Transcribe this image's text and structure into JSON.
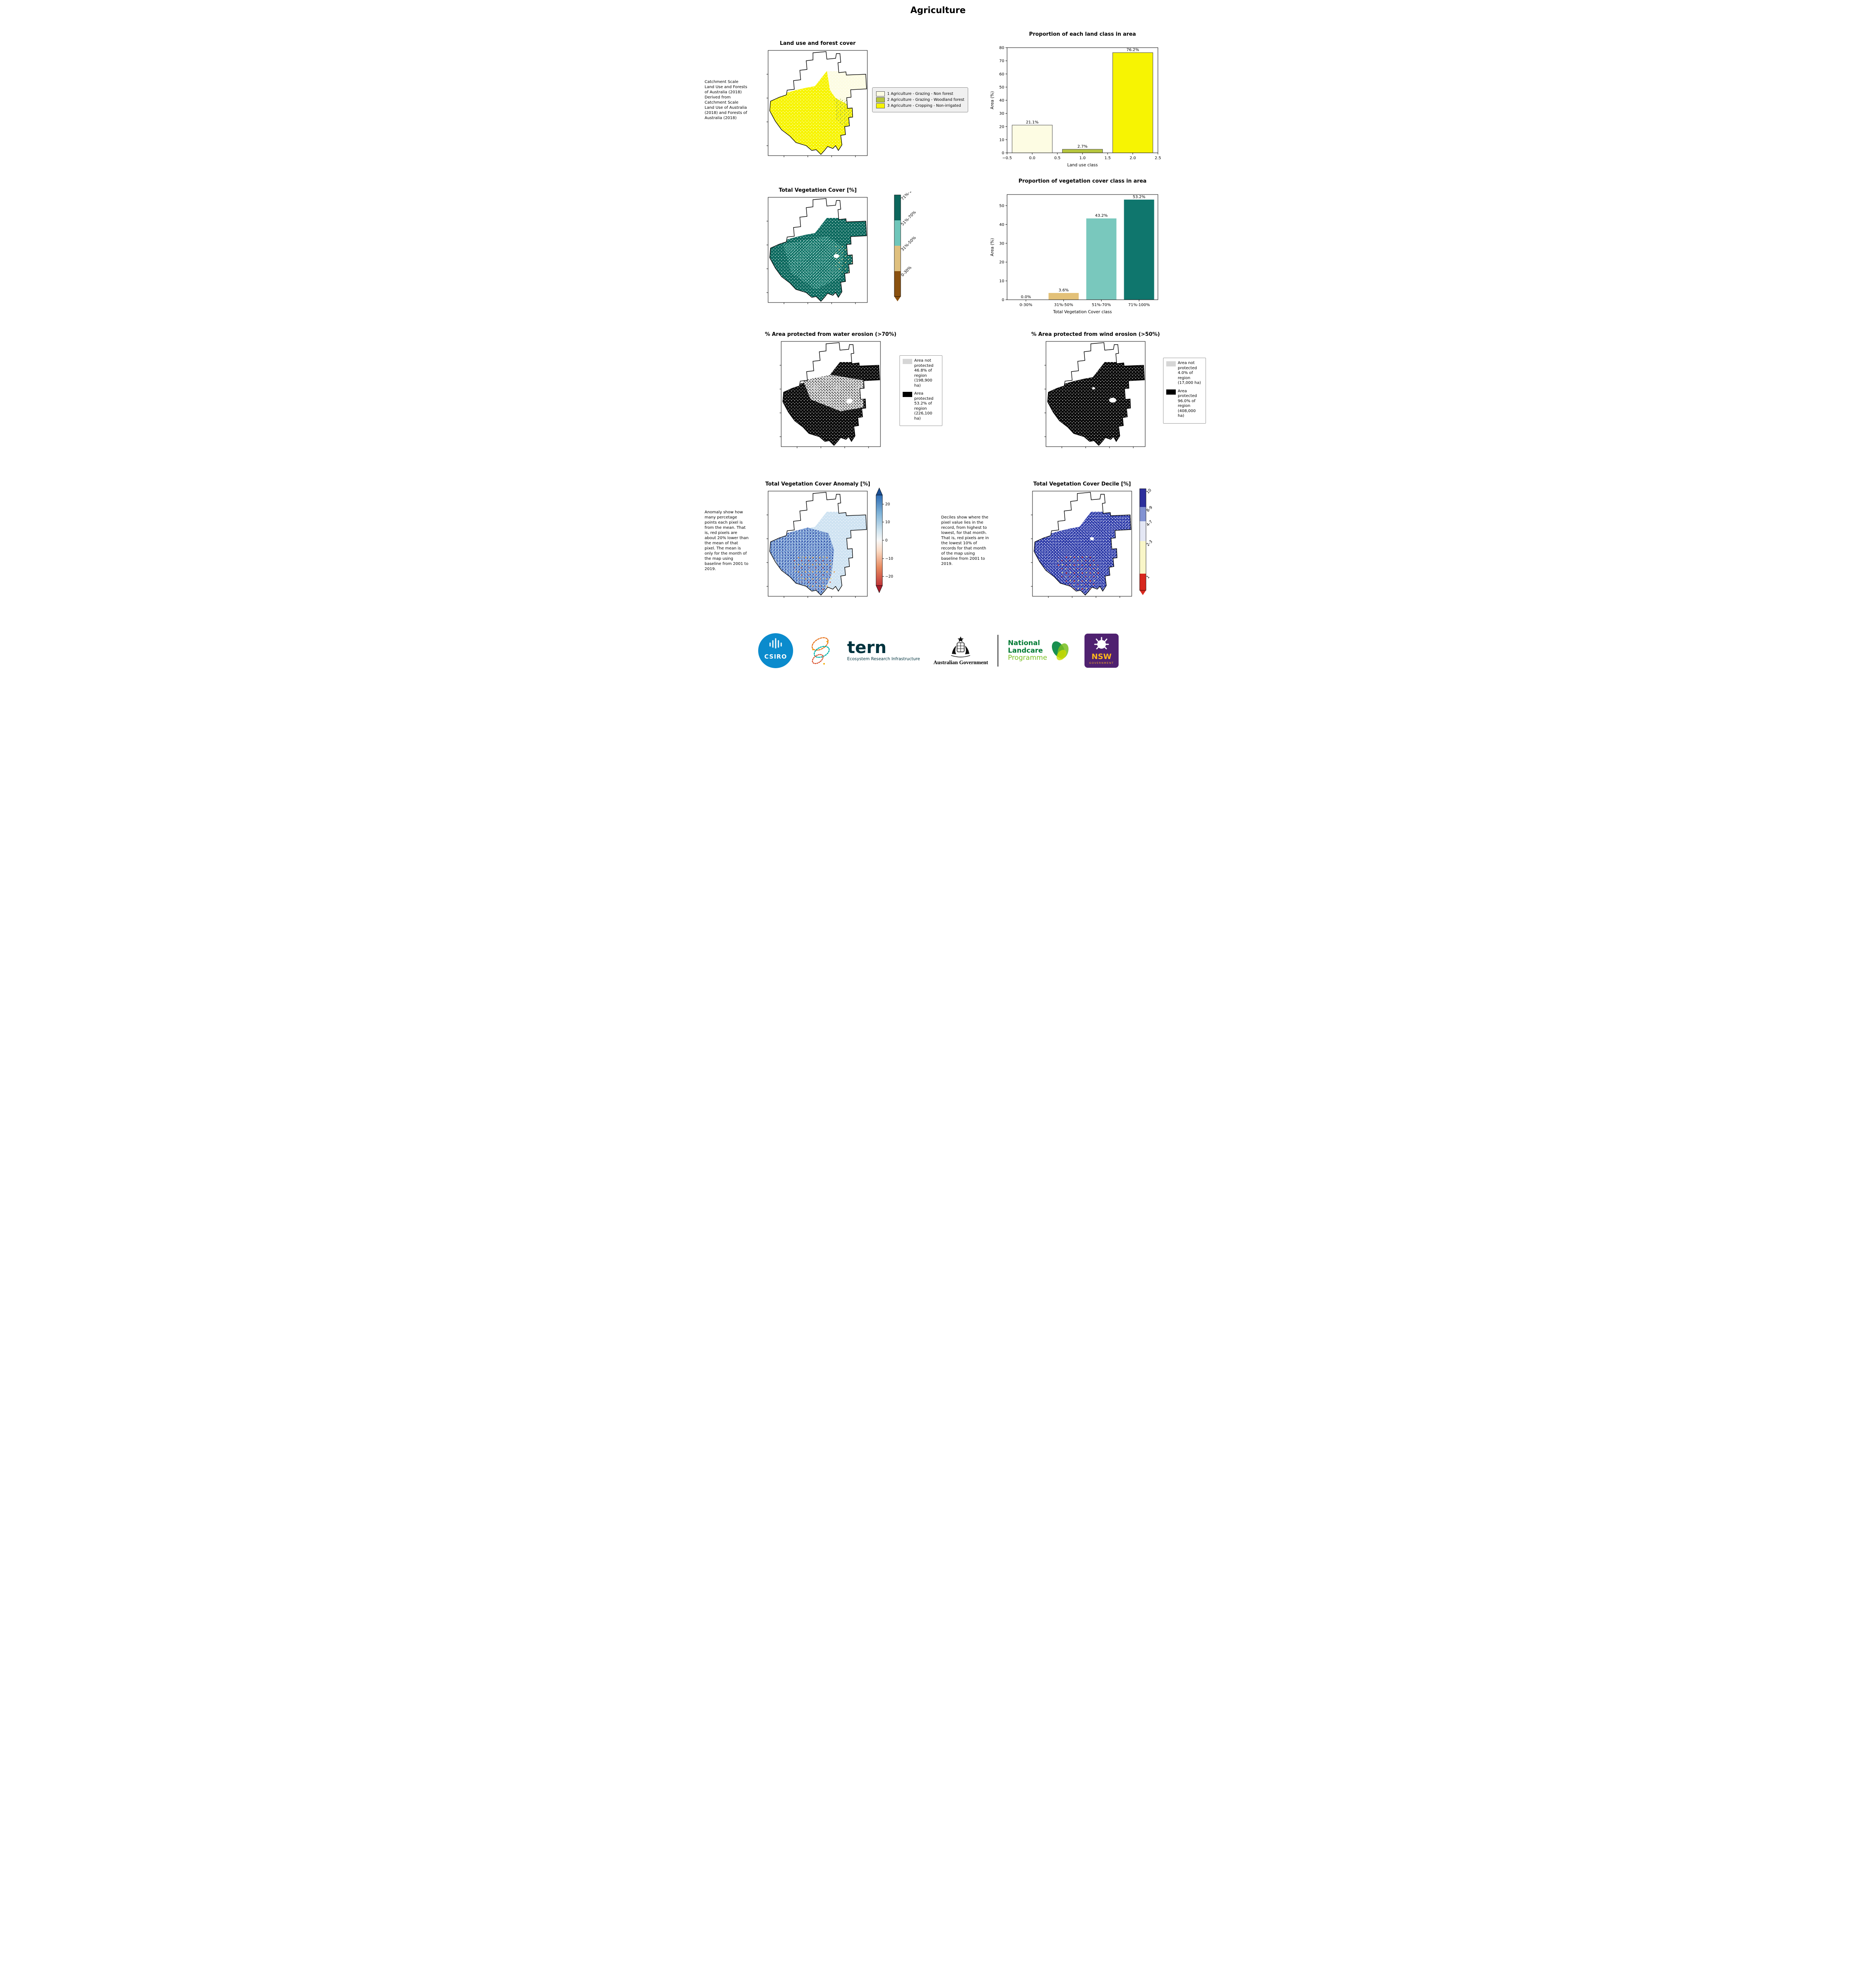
{
  "page": {
    "title": "Agriculture"
  },
  "panels": {
    "land_use": {
      "title": "Land use and forest cover",
      "caption": "Catchment Scale Land Use and Forests of Australia (2018) Derived from Catchment Scale Land Use of Australia (2018) and Forests of Australia (2018)",
      "legend": [
        {
          "label": "1 Agriculture - Grazing - Non forest",
          "color": "#fdfce3"
        },
        {
          "label": "2 Agriculture - Grazing - Woodland forest",
          "color": "#b6c53e"
        },
        {
          "label": "3 Agriculture - Cropping - Non-irrigated",
          "color": "#f7f402"
        }
      ]
    },
    "veg_cover": {
      "title": "Total Vegetation Cover [%]",
      "colorbar": [
        {
          "label": "71%-100%",
          "color": "#0c665c"
        },
        {
          "label": "51%-70%",
          "color": "#6fc6ba"
        },
        {
          "label": "31%-50%",
          "color": "#dfc07e"
        },
        {
          "label": "0-30%",
          "color": "#8a510f"
        }
      ]
    },
    "water_erosion": {
      "title": "% Area protected from water erosion (>70%)",
      "legend": [
        {
          "label": "Area not protected 46.8% of region (198,900 ha)",
          "color": "#d6d6d6"
        },
        {
          "label": "Area protected 53.2% of region (226,100 ha)",
          "color": "#000000"
        }
      ]
    },
    "wind_erosion": {
      "title": "% Area protected from wind erosion (>50%)",
      "legend": [
        {
          "label": "Area not protected 4.0% of region (17,000 ha)",
          "color": "#d6d6d6"
        },
        {
          "label": "Area protected 96.0% of region (408,000 ha)",
          "color": "#000000"
        }
      ]
    },
    "anomaly": {
      "title": "Total Vegetation Cover Anomaly [%]",
      "caption": "Anomaly show how many percetage points each pixel is from the mean. That is, red pixels are about 20% lower than the mean of that pixel. The mean is only for the month of the map using baseline from 2001 to 2019.",
      "colorbar_ticks": [
        "20",
        "10",
        "0",
        "−10",
        "−20"
      ]
    },
    "decile": {
      "title": "Total Vegetation Cover Decile [%]",
      "caption": "Deciles show where the pixel value lies in the record, from highest to lowest, for that month. That is, red pixels are in the lowest 10% of records for that month of the map using baseline from 2001 to 2019.",
      "colorbar": [
        {
          "label": "10",
          "color": "#2c2f9c"
        },
        {
          "label": "8-9",
          "color": "#8292d2"
        },
        {
          "label": "4-7",
          "color": "#e4e7f4"
        },
        {
          "label": "2-3",
          "color": "#f9f6c8"
        },
        {
          "label": "1",
          "color": "#d7281e"
        }
      ]
    }
  },
  "chart_data": [
    {
      "type": "bar",
      "title": "Proportion of each land class in area",
      "xlabel": "Land use class",
      "ylabel": "Area (%)",
      "xlim": [
        -0.5,
        2.5
      ],
      "ylim": [
        0,
        80
      ],
      "yticks": [
        0,
        10,
        20,
        30,
        40,
        50,
        60,
        70,
        80
      ],
      "xticks": [
        {
          "v": -0.5,
          "label": "−0.5"
        },
        {
          "v": 0,
          "label": "0.0"
        },
        {
          "v": 0.5,
          "label": "0.5"
        },
        {
          "v": 1,
          "label": "1.0"
        },
        {
          "v": 1.5,
          "label": "1.5"
        },
        {
          "v": 2,
          "label": "2.0"
        },
        {
          "v": 2.5,
          "label": "2.5"
        }
      ],
      "bar_width": 0.8,
      "bars": [
        {
          "x": 0,
          "value": 21.1,
          "label": "21.1%",
          "color": "#fdfce3",
          "edge": "#444444"
        },
        {
          "x": 1,
          "value": 2.7,
          "label": "2.7%",
          "color": "#b6c53e",
          "edge": "#444444"
        },
        {
          "x": 2,
          "value": 76.2,
          "label": "76.2%",
          "color": "#f7f402",
          "edge": "#444444"
        }
      ]
    },
    {
      "type": "bar",
      "title": "Proportion of vegetation cover class in area",
      "xlabel": "Total Vegetation Cover class",
      "ylabel": "Area (%)",
      "xlim": [
        -0.5,
        3.5
      ],
      "ylim": [
        0,
        55.9
      ],
      "yticks": [
        0,
        10,
        20,
        30,
        40,
        50
      ],
      "xticks": [
        {
          "v": 0,
          "label": "0-30%"
        },
        {
          "v": 1,
          "label": "31%-50%"
        },
        {
          "v": 2,
          "label": "51%-70%"
        },
        {
          "v": 3,
          "label": "71%-100%"
        }
      ],
      "bar_width": 0.8,
      "bars": [
        {
          "x": 0,
          "value": 0.0,
          "label": "0.0%",
          "color": "#fdfce3"
        },
        {
          "x": 1,
          "value": 3.6,
          "label": "3.6%",
          "color": "#e3c178"
        },
        {
          "x": 2,
          "value": 43.2,
          "label": "43.2%",
          "color": "#79c8bd"
        },
        {
          "x": 3,
          "value": 53.2,
          "label": "53.2%",
          "color": "#0f766d"
        }
      ]
    }
  ],
  "footer": {
    "csiro": "CSIRO",
    "tern": "tern",
    "tern_subtitle": "Ecosystem Research Infrastructure",
    "aus_gov": "Australian Government",
    "nlp_line1": "National",
    "nlp_line2": "Landcare",
    "nlp_line3": "Programme",
    "nsw": "NSW",
    "nsw_sub": "GOVERNMENT"
  }
}
